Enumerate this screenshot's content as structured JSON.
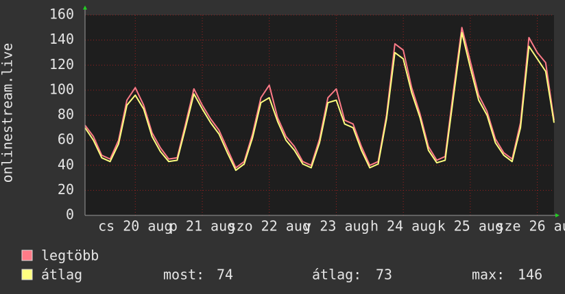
{
  "chart_data": {
    "type": "line",
    "ylabel": "onlinestream.live",
    "xlim": [
      0,
      168
    ],
    "ylim": [
      0,
      160
    ],
    "yticks": [
      0,
      20,
      40,
      60,
      80,
      100,
      120,
      140,
      160
    ],
    "xticks": [
      {
        "value": 18,
        "label": "cs 20 aug"
      },
      {
        "value": 42,
        "label": "p 21 aug"
      },
      {
        "value": 66,
        "label": "szo 22 aug"
      },
      {
        "value": 90,
        "label": "v 23 aug"
      },
      {
        "value": 114,
        "label": "h 24 aug"
      },
      {
        "value": 138,
        "label": "k 25 aug"
      },
      {
        "value": 162,
        "label": "sze 26 aug"
      }
    ],
    "grid": true,
    "x": [
      0,
      3,
      6,
      9,
      12,
      15,
      18,
      21,
      24,
      27,
      30,
      33,
      36,
      39,
      42,
      45,
      48,
      51,
      54,
      57,
      60,
      63,
      66,
      69,
      72,
      75,
      78,
      81,
      84,
      87,
      90,
      93,
      96,
      99,
      102,
      105,
      108,
      111,
      114,
      117,
      120,
      123,
      126,
      129,
      132,
      135,
      138,
      141,
      144,
      147,
      150,
      153,
      156,
      159,
      162,
      165,
      168
    ],
    "series": [
      {
        "name": "legtöbb",
        "color": "#ff7b88",
        "values": [
          72,
          63,
          48,
          45,
          60,
          92,
          102,
          88,
          66,
          54,
          45,
          46,
          73,
          101,
          88,
          77,
          68,
          53,
          38,
          43,
          65,
          94,
          104,
          78,
          63,
          55,
          43,
          40,
          61,
          94,
          101,
          76,
          73,
          55,
          40,
          43,
          80,
          137,
          132,
          102,
          81,
          55,
          44,
          47,
          100,
          150,
          123,
          96,
          83,
          61,
          50,
          45,
          74,
          142,
          130,
          122,
          76
        ]
      },
      {
        "name": "átlag",
        "color": "#ffff80",
        "values": [
          70,
          60,
          46,
          43,
          57,
          88,
          96,
          85,
          63,
          51,
          43,
          44,
          70,
          97,
          85,
          74,
          65,
          50,
          36,
          41,
          62,
          90,
          94,
          75,
          60,
          52,
          41,
          38,
          58,
          90,
          92,
          73,
          70,
          52,
          38,
          41,
          77,
          130,
          125,
          98,
          78,
          52,
          42,
          44,
          95,
          146,
          118,
          92,
          80,
          58,
          48,
          43,
          70,
          135,
          125,
          115,
          74
        ]
      }
    ],
    "stats": [
      {
        "label": "most:",
        "value": 74
      },
      {
        "label": "átlag:",
        "value": 73
      },
      {
        "label": "max:",
        "value": 146
      }
    ]
  }
}
